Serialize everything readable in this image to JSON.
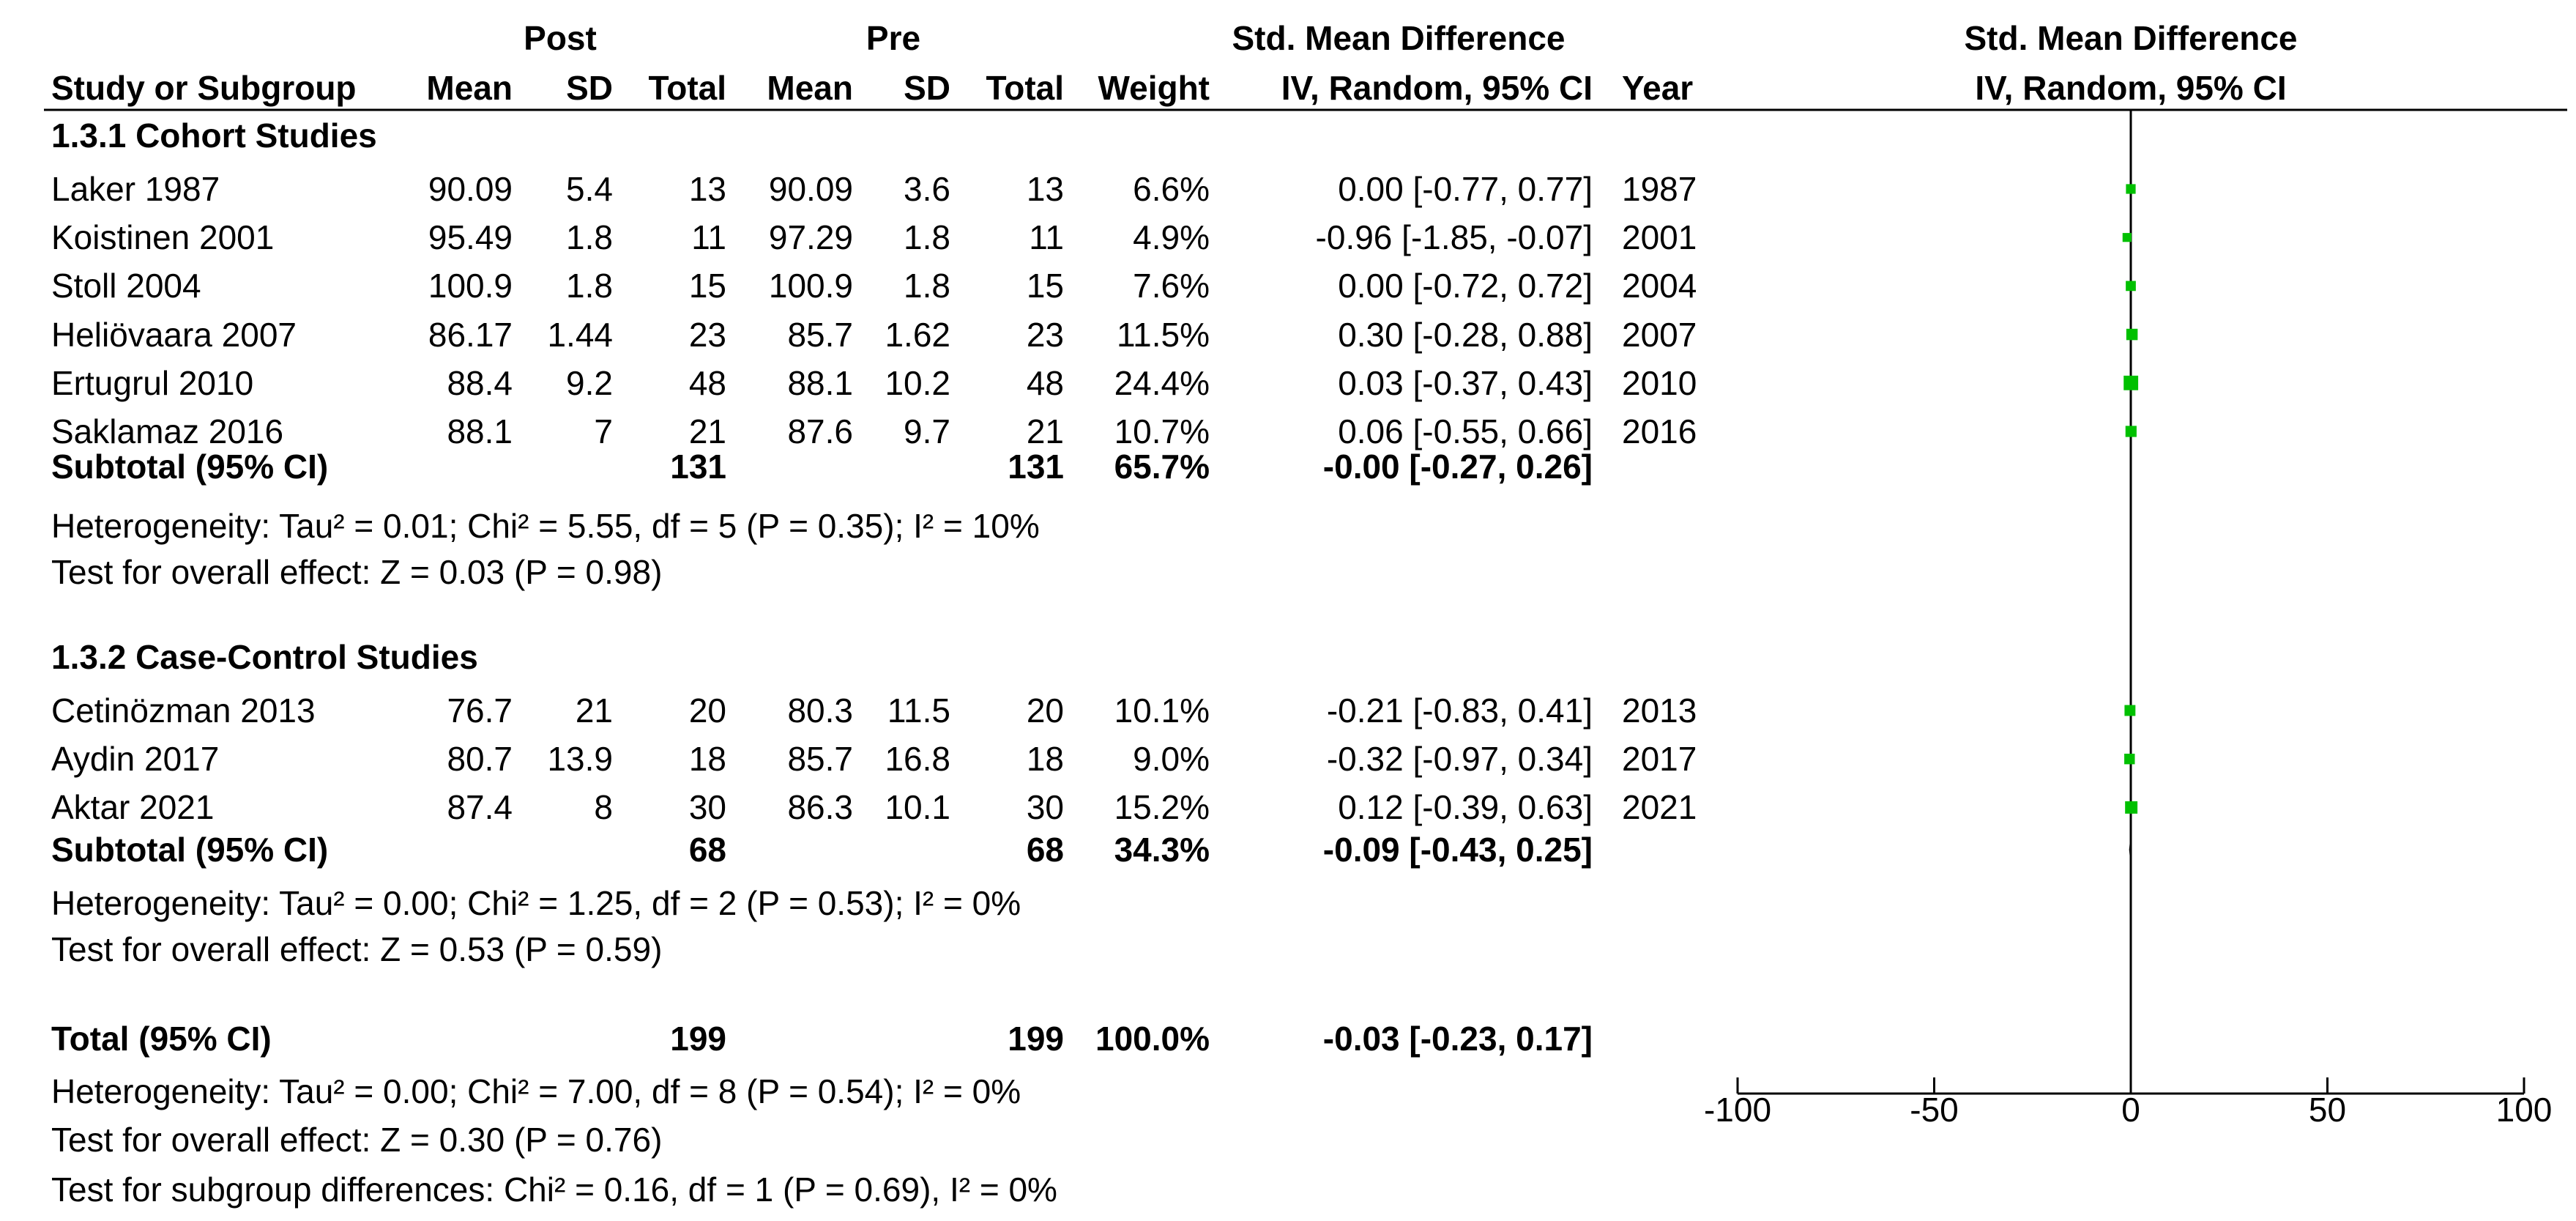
{
  "header": {
    "group_post": "Post",
    "group_pre": "Pre",
    "smd_title": "Std. Mean Difference",
    "plot_title": "Std. Mean Difference",
    "col_study": "Study or Subgroup",
    "col_mean1": "Mean",
    "col_sd1": "SD",
    "col_total1": "Total",
    "col_mean2": "Mean",
    "col_sd2": "SD",
    "col_total2": "Total",
    "col_weight": "Weight",
    "col_ci": "IV, Random, 95% CI",
    "col_year": "Year",
    "plot_subtitle": "IV, Random, 95% CI"
  },
  "groups": [
    {
      "title": "1.3.1 Cohort Studies",
      "studies": [
        {
          "name": "Laker 1987",
          "mean1": "90.09",
          "sd1": "5.4",
          "total1": "13",
          "mean2": "90.09",
          "sd2": "3.6",
          "total2": "13",
          "weight": "6.6%",
          "ci": "0.00 [-0.77, 0.77]",
          "year": "1987"
        },
        {
          "name": "Koistinen 2001",
          "mean1": "95.49",
          "sd1": "1.8",
          "total1": "11",
          "mean2": "97.29",
          "sd2": "1.8",
          "total2": "11",
          "weight": "4.9%",
          "ci": "-0.96 [-1.85, -0.07]",
          "year": "2001"
        },
        {
          "name": "Stoll 2004",
          "mean1": "100.9",
          "sd1": "1.8",
          "total1": "15",
          "mean2": "100.9",
          "sd2": "1.8",
          "total2": "15",
          "weight": "7.6%",
          "ci": "0.00 [-0.72, 0.72]",
          "year": "2004"
        },
        {
          "name": "Heliövaara 2007",
          "mean1": "86.17",
          "sd1": "1.44",
          "total1": "23",
          "mean2": "85.7",
          "sd2": "1.62",
          "total2": "23",
          "weight": "11.5%",
          "ci": "0.30 [-0.28, 0.88]",
          "year": "2007"
        },
        {
          "name": "Ertugrul 2010",
          "mean1": "88.4",
          "sd1": "9.2",
          "total1": "48",
          "mean2": "88.1",
          "sd2": "10.2",
          "total2": "48",
          "weight": "24.4%",
          "ci": "0.03 [-0.37, 0.43]",
          "year": "2010"
        },
        {
          "name": "Saklamaz 2016",
          "mean1": "88.1",
          "sd1": "7",
          "total1": "21",
          "mean2": "87.6",
          "sd2": "9.7",
          "total2": "21",
          "weight": "10.7%",
          "ci": "0.06 [-0.55, 0.66]",
          "year": "2016"
        }
      ],
      "subtotal": {
        "label": "Subtotal (95% CI)",
        "total1": "131",
        "total2": "131",
        "weight": "65.7%",
        "ci": "-0.00 [-0.27, 0.26]"
      },
      "heterogeneity": "Heterogeneity: Tau² = 0.01; Chi² = 5.55, df = 5 (P = 0.35); I² = 10%",
      "overall": "Test for overall effect: Z = 0.03 (P = 0.98)"
    },
    {
      "title": "1.3.2 Case-Control Studies",
      "studies": [
        {
          "name": "Cetinözman 2013",
          "mean1": "76.7",
          "sd1": "21",
          "total1": "20",
          "mean2": "80.3",
          "sd2": "11.5",
          "total2": "20",
          "weight": "10.1%",
          "ci": "-0.21 [-0.83, 0.41]",
          "year": "2013"
        },
        {
          "name": "Aydin 2017",
          "mean1": "80.7",
          "sd1": "13.9",
          "total1": "18",
          "mean2": "85.7",
          "sd2": "16.8",
          "total2": "18",
          "weight": "9.0%",
          "ci": "-0.32 [-0.97, 0.34]",
          "year": "2017"
        },
        {
          "name": "Aktar 2021",
          "mean1": "87.4",
          "sd1": "8",
          "total1": "30",
          "mean2": "86.3",
          "sd2": "10.1",
          "total2": "30",
          "weight": "15.2%",
          "ci": "0.12 [-0.39, 0.63]",
          "year": "2021"
        }
      ],
      "subtotal": {
        "label": "Subtotal (95% CI)",
        "total1": "68",
        "total2": "68",
        "weight": "34.3%",
        "ci": "-0.09 [-0.43, 0.25]"
      },
      "heterogeneity": "Heterogeneity: Tau² = 0.00; Chi² = 1.25, df = 2 (P = 0.53); I² = 0%",
      "overall": "Test for overall effect: Z = 0.53 (P = 0.59)"
    }
  ],
  "total": {
    "label": "Total (95% CI)",
    "total1": "199",
    "total2": "199",
    "weight": "100.0%",
    "ci": "-0.03 [-0.23, 0.17]"
  },
  "footer": {
    "heterogeneity": "Heterogeneity: Tau² = 0.00; Chi² = 7.00, df = 8 (P = 0.54); I² = 0%",
    "overall": "Test for overall effect: Z = 0.30 (P = 0.76)",
    "subgroup": "Test for subgroup differences: Chi² = 0.16, df = 1 (P = 0.69), I² = 0%"
  },
  "colors": {
    "marker": "#00c000",
    "line": "#000000"
  },
  "chart_data": {
    "type": "scatter",
    "xlim": [
      -100,
      100
    ],
    "xticks": [
      -100,
      -50,
      0,
      50,
      100
    ],
    "null_line": 0,
    "studies": [
      {
        "name": "Laker 1987",
        "estimate": 0.0,
        "ci": [
          -0.77,
          0.77
        ],
        "weight": 6.6
      },
      {
        "name": "Koistinen 2001",
        "estimate": -0.96,
        "ci": [
          -1.85,
          -0.07
        ],
        "weight": 4.9
      },
      {
        "name": "Stoll 2004",
        "estimate": 0.0,
        "ci": [
          -0.72,
          0.72
        ],
        "weight": 7.6
      },
      {
        "name": "Heliövaara 2007",
        "estimate": 0.3,
        "ci": [
          -0.28,
          0.88
        ],
        "weight": 11.5
      },
      {
        "name": "Ertugrul 2010",
        "estimate": 0.03,
        "ci": [
          -0.37,
          0.43
        ],
        "weight": 24.4
      },
      {
        "name": "Saklamaz 2016",
        "estimate": 0.06,
        "ci": [
          -0.55,
          0.66
        ],
        "weight": 10.7
      },
      {
        "name": "Cetinözman 2013",
        "estimate": -0.21,
        "ci": [
          -0.83,
          0.41
        ],
        "weight": 10.1
      },
      {
        "name": "Aydin 2017",
        "estimate": -0.32,
        "ci": [
          -0.97,
          0.34
        ],
        "weight": 9.0
      },
      {
        "name": "Aktar 2021",
        "estimate": 0.12,
        "ci": [
          -0.39,
          0.63
        ],
        "weight": 15.2
      }
    ],
    "summaries": [
      {
        "name": "Subtotal (95% CI)",
        "estimate": -0.0,
        "ci": [
          -0.27,
          0.26
        ]
      },
      {
        "name": "Subtotal (95% CI)",
        "estimate": -0.09,
        "ci": [
          -0.43,
          0.25
        ]
      },
      {
        "name": "Total (95% CI)",
        "estimate": -0.03,
        "ci": [
          -0.23,
          0.17
        ]
      }
    ]
  }
}
